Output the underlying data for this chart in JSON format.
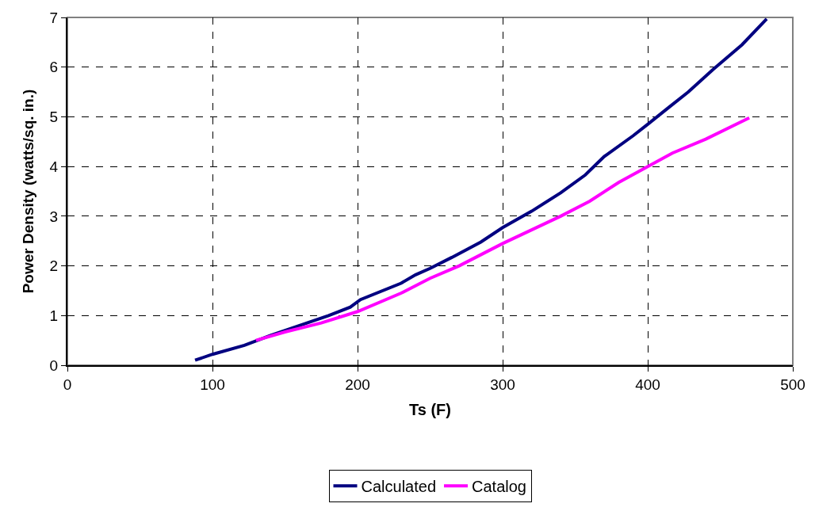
{
  "chart_data": {
    "type": "line",
    "xlabel": "Ts (F)",
    "ylabel": "Power Density (watts/sq. in.)",
    "xlim": [
      0,
      500
    ],
    "xticks": [
      0,
      100,
      200,
      300,
      400,
      500
    ],
    "ylim": [
      0,
      7
    ],
    "yticks": [
      0,
      1,
      2,
      3,
      4,
      5,
      6,
      7
    ],
    "grid": true,
    "legend": "bottom",
    "marker": "none",
    "line_style": "solid",
    "series": [
      {
        "name": "Calculated",
        "color": "#000080",
        "x": [
          88,
          100,
          122,
          140,
          160,
          180,
          195,
          202,
          230,
          240,
          250,
          265,
          285,
          300,
          320,
          340,
          357,
          370,
          390,
          400,
          415,
          428,
          445,
          465,
          482
        ],
        "values": [
          0.1,
          0.22,
          0.4,
          0.6,
          0.8,
          1.0,
          1.17,
          1.32,
          1.65,
          1.82,
          1.95,
          2.17,
          2.48,
          2.77,
          3.1,
          3.47,
          3.83,
          4.2,
          4.62,
          4.85,
          5.2,
          5.5,
          5.95,
          6.45,
          6.97
        ]
      },
      {
        "name": "Catalog",
        "color": "#ff00ff",
        "x": [
          130,
          150,
          175,
          200,
          230,
          250,
          270,
          300,
          340,
          360,
          380,
          400,
          417,
          440,
          470
        ],
        "values": [
          0.5,
          0.67,
          0.85,
          1.08,
          1.45,
          1.75,
          2.0,
          2.45,
          3.0,
          3.3,
          3.68,
          4.0,
          4.27,
          4.55,
          4.98
        ]
      }
    ]
  }
}
